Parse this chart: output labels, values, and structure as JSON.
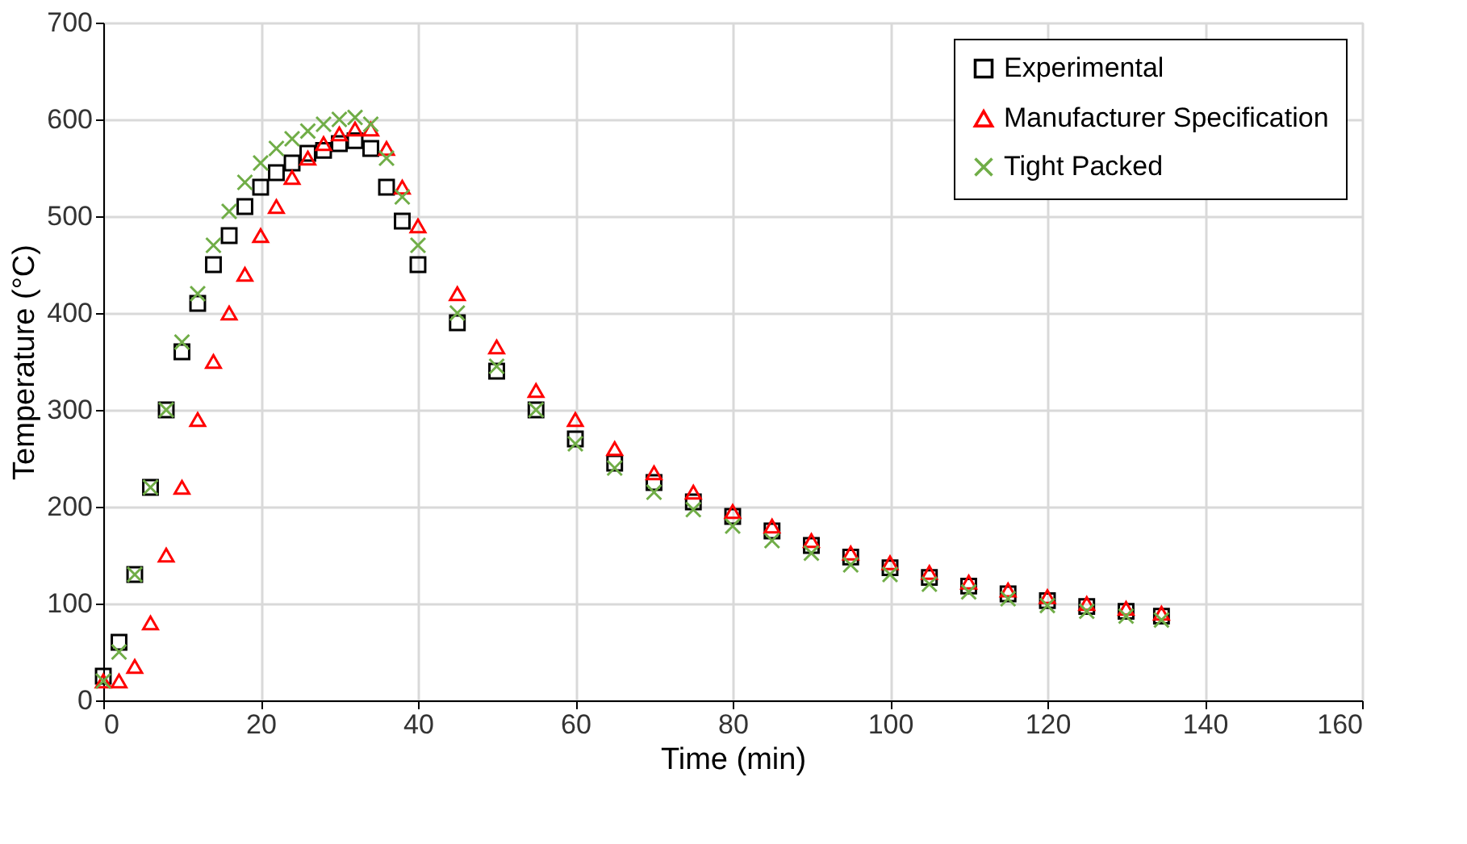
{
  "chart_data": {
    "type": "scatter",
    "xlabel": "Time (min)",
    "ylabel": "Temperature (°C)",
    "x": [
      0,
      2,
      4,
      6,
      8,
      10,
      12,
      14,
      16,
      18,
      20,
      22,
      24,
      26,
      28,
      30,
      32,
      34,
      36,
      38,
      40,
      45,
      50,
      55,
      60,
      65,
      70,
      75,
      80,
      85,
      90,
      95,
      100,
      105,
      110,
      115,
      120,
      125,
      130,
      134.5
    ],
    "series": [
      {
        "name": "Experimental",
        "color": "#000000",
        "marker": "square",
        "values": [
          25,
          60,
          130,
          220,
          300,
          360,
          410,
          450,
          480,
          510,
          530,
          545,
          555,
          565,
          568,
          575,
          578,
          570,
          530,
          495,
          450,
          390,
          340,
          300,
          270,
          245,
          225,
          205,
          190,
          175,
          160,
          148,
          137,
          127,
          118,
          110,
          103,
          97,
          92,
          87
        ]
      },
      {
        "name": "Manufacturer Specification",
        "color": "#ff0000",
        "marker": "triangle",
        "values": [
          20,
          20,
          35,
          80,
          150,
          220,
          290,
          350,
          400,
          440,
          480,
          510,
          540,
          560,
          575,
          585,
          590,
          590,
          570,
          530,
          490,
          420,
          365,
          320,
          290,
          260,
          235,
          215,
          195,
          180,
          165,
          152,
          142,
          132,
          122,
          114,
          107,
          100,
          95,
          90
        ]
      },
      {
        "name": "Tight Packed",
        "color": "#70ad47",
        "marker": "cross",
        "values": [
          20,
          50,
          130,
          220,
          300,
          370,
          420,
          470,
          505,
          535,
          555,
          570,
          580,
          588,
          595,
          600,
          602,
          595,
          560,
          520,
          470,
          400,
          345,
          300,
          265,
          240,
          215,
          197,
          180,
          165,
          152,
          140,
          130,
          120,
          112,
          105,
          98,
          92,
          87,
          83
        ]
      }
    ],
    "xlim": [
      0,
      160
    ],
    "xticks": [
      0,
      20,
      40,
      60,
      80,
      100,
      120,
      140,
      160
    ],
    "ylim": [
      0,
      700
    ],
    "yticks": [
      0,
      100,
      200,
      300,
      400,
      500,
      600,
      700
    ],
    "grid": true,
    "legend": "top right"
  }
}
